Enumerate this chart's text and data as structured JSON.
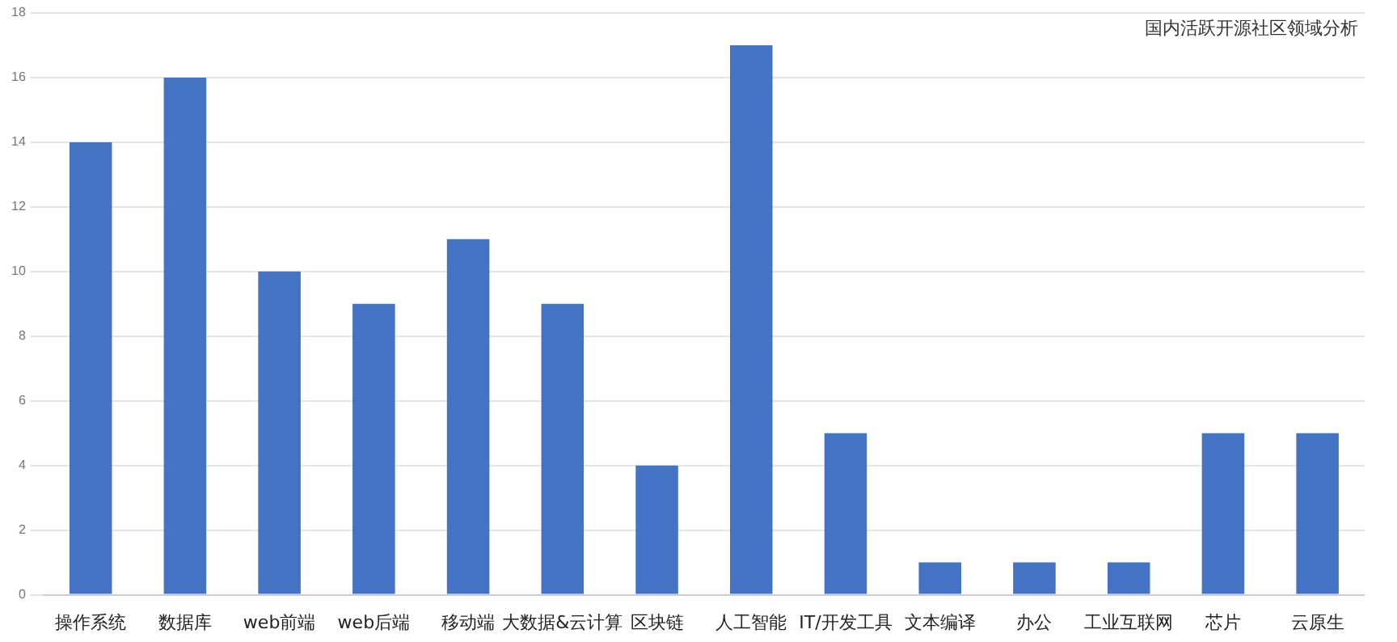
{
  "chart_data": {
    "type": "bar",
    "title": "国内活跃开源社区领域分析",
    "categories": [
      "操作系统",
      "数据库",
      "web前端",
      "web后端",
      "移动端",
      "大数据&云计算",
      "区块链",
      "人工智能",
      "IT/开发工具",
      "文本编译",
      "办公",
      "工业互联网",
      "芯片",
      "云原生"
    ],
    "values": [
      14,
      16,
      10,
      9,
      11,
      9,
      4,
      17,
      5,
      1,
      1,
      1,
      5,
      5
    ],
    "color": "#4472c4",
    "ylim": [
      0,
      18
    ],
    "yticks": [
      0,
      2,
      4,
      6,
      8,
      10,
      12,
      14,
      16,
      18
    ],
    "grid": "y",
    "legend": false
  }
}
